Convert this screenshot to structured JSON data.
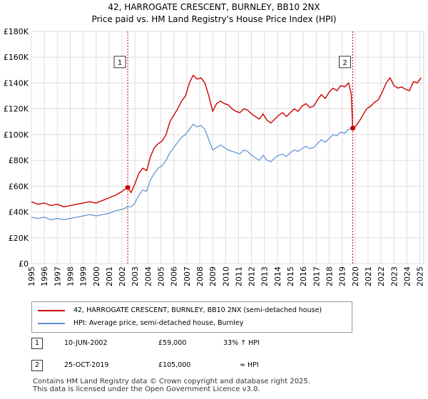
{
  "chart_data": {
    "type": "line",
    "title": "42, HARROGATE CRESCENT, BURNLEY, BB10 2NX",
    "subtitle": "Price paid vs. HM Land Registry's House Price Index (HPI)",
    "xlim": [
      1995,
      2025.3
    ],
    "ylim": [
      0,
      180000
    ],
    "y_ticks": [
      0,
      20000,
      40000,
      60000,
      80000,
      100000,
      120000,
      140000,
      160000,
      180000
    ],
    "y_tick_labels": [
      "£0",
      "£20K",
      "£40K",
      "£60K",
      "£80K",
      "£100K",
      "£120K",
      "£140K",
      "£160K",
      "£180K"
    ],
    "x_ticks": [
      1995,
      1996,
      1997,
      1998,
      1999,
      2000,
      2001,
      2002,
      2003,
      2004,
      2005,
      2006,
      2007,
      2008,
      2009,
      2010,
      2011,
      2012,
      2013,
      2014,
      2015,
      2016,
      2017,
      2018,
      2019,
      2020,
      2021,
      2022,
      2023,
      2024,
      2025
    ],
    "x_tick_labels": [
      "1995",
      "1996",
      "1997",
      "1998",
      "1999",
      "2000",
      "2001",
      "2002",
      "2003",
      "2004",
      "2005",
      "2006",
      "2007",
      "2008",
      "2009",
      "2010",
      "2011",
      "2012",
      "2013",
      "2014",
      "2015",
      "2016",
      "2017",
      "2018",
      "2019",
      "2020",
      "2021",
      "2022",
      "2023",
      "2024",
      "2025"
    ],
    "grid": true,
    "series": [
      {
        "name": "42, HARROGATE CRESCENT, BURNLEY, BB10 2NX (semi-detached house)",
        "color": "#cc0000",
        "x": [
          1995.0,
          1995.5,
          1996.0,
          1996.5,
          1997.0,
          1997.5,
          1998.0,
          1998.5,
          1999.0,
          1999.5,
          2000.0,
          2000.5,
          2001.0,
          2001.5,
          2002.0,
          2002.44,
          2002.7,
          2003.0,
          2003.3,
          2003.6,
          2003.9,
          2004.2,
          2004.5,
          2004.8,
          2005.1,
          2005.4,
          2005.7,
          2006.0,
          2006.3,
          2006.6,
          2006.9,
          2007.2,
          2007.5,
          2007.8,
          2008.1,
          2008.4,
          2008.7,
          2009.0,
          2009.3,
          2009.6,
          2009.9,
          2010.2,
          2010.5,
          2010.8,
          2011.1,
          2011.4,
          2011.7,
          2012.0,
          2012.3,
          2012.6,
          2012.9,
          2013.2,
          2013.5,
          2013.8,
          2014.1,
          2014.4,
          2014.7,
          2015.0,
          2015.3,
          2015.6,
          2015.9,
          2016.2,
          2016.5,
          2016.8,
          2017.1,
          2017.4,
          2017.7,
          2018.0,
          2018.3,
          2018.6,
          2018.9,
          2019.2,
          2019.5,
          2019.7,
          2019.82,
          2020.0,
          2020.3,
          2020.6,
          2020.9,
          2021.2,
          2021.5,
          2021.8,
          2022.1,
          2022.4,
          2022.7,
          2023.0,
          2023.3,
          2023.6,
          2023.9,
          2024.2,
          2024.5,
          2024.8,
          2025.1
        ],
        "values": [
          48000,
          46000,
          47000,
          45000,
          46000,
          44000,
          45000,
          46000,
          47000,
          48000,
          47000,
          49000,
          51000,
          53000,
          56000,
          59000,
          55000,
          62000,
          70000,
          74000,
          72000,
          83000,
          90000,
          93000,
          95000,
          100000,
          110000,
          115000,
          120000,
          126000,
          130000,
          140000,
          146000,
          143000,
          144000,
          140000,
          130000,
          118000,
          124000,
          126000,
          124000,
          123000,
          120000,
          118000,
          117000,
          120000,
          119000,
          116000,
          114000,
          112000,
          116000,
          111000,
          109000,
          112000,
          115000,
          117000,
          114000,
          117000,
          120000,
          118000,
          122000,
          124000,
          121000,
          122000,
          127000,
          131000,
          128000,
          133000,
          136000,
          134000,
          138000,
          137000,
          140000,
          132000,
          105000,
          106000,
          110000,
          115000,
          120000,
          122000,
          125000,
          127000,
          133000,
          140000,
          144000,
          138000,
          136000,
          137000,
          135000,
          134000,
          141000,
          140000,
          144000
        ],
        "sale_points": [
          [
            2002.44,
            59000
          ],
          [
            2019.82,
            105000
          ]
        ]
      },
      {
        "name": "HPI: Average price, semi-detached house, Burnley",
        "color": "#5b8fd0",
        "x": [
          1995.0,
          1995.5,
          1996.0,
          1996.5,
          1997.0,
          1997.5,
          1998.0,
          1998.5,
          1999.0,
          1999.5,
          2000.0,
          2000.5,
          2001.0,
          2001.5,
          2002.0,
          2002.44,
          2002.7,
          2003.0,
          2003.3,
          2003.6,
          2003.9,
          2004.2,
          2004.5,
          2004.8,
          2005.1,
          2005.4,
          2005.7,
          2006.0,
          2006.3,
          2006.6,
          2006.9,
          2007.2,
          2007.5,
          2007.8,
          2008.1,
          2008.4,
          2008.7,
          2009.0,
          2009.3,
          2009.6,
          2009.9,
          2010.2,
          2010.5,
          2010.8,
          2011.1,
          2011.4,
          2011.7,
          2012.0,
          2012.3,
          2012.6,
          2012.9,
          2013.2,
          2013.5,
          2013.8,
          2014.1,
          2014.4,
          2014.7,
          2015.0,
          2015.3,
          2015.6,
          2015.9,
          2016.2,
          2016.5,
          2016.8,
          2017.1,
          2017.4,
          2017.7,
          2018.0,
          2018.3,
          2018.6,
          2018.9,
          2019.2,
          2019.5,
          2019.82
        ],
        "values": [
          36000,
          35000,
          36000,
          34000,
          35000,
          34000,
          35000,
          36000,
          37000,
          38000,
          37000,
          38000,
          39000,
          41000,
          42000,
          44000,
          44000,
          47000,
          53000,
          57000,
          56000,
          65000,
          70000,
          74000,
          76000,
          80000,
          86000,
          90000,
          94000,
          98000,
          100000,
          104000,
          108000,
          106000,
          107000,
          104000,
          96000,
          88000,
          90000,
          92000,
          90000,
          88000,
          87000,
          86000,
          85000,
          88000,
          87000,
          84000,
          82000,
          80000,
          84000,
          80000,
          79000,
          82000,
          84000,
          85000,
          83000,
          86000,
          88000,
          87000,
          89000,
          91000,
          89000,
          90000,
          93000,
          96000,
          94000,
          97000,
          100000,
          99000,
          102000,
          101000,
          104000,
          105000
        ]
      }
    ],
    "annotations": [
      {
        "label": "1",
        "x": 2002.44
      },
      {
        "label": "2",
        "x": 2019.82
      }
    ]
  },
  "legend": {
    "series1": "42, HARROGATE CRESCENT, BURNLEY, BB10 2NX (semi-detached house)",
    "series2": "HPI: Average price, semi-detached house, Burnley"
  },
  "transactions": [
    {
      "num": "1",
      "date": "10-JUN-2002",
      "price": "£59,000",
      "hpi": "33% ↑ HPI"
    },
    {
      "num": "2",
      "date": "25-OCT-2019",
      "price": "£105,000",
      "hpi": "≈ HPI"
    }
  ],
  "footer": {
    "line1": "Contains HM Land Registry data © Crown copyright and database right 2025.",
    "line2": "This data is licensed under the Open Government Licence v3.0."
  },
  "colors": {
    "red": "#cc0000",
    "blue": "#5b8fd0",
    "grid": "#dddddd"
  }
}
